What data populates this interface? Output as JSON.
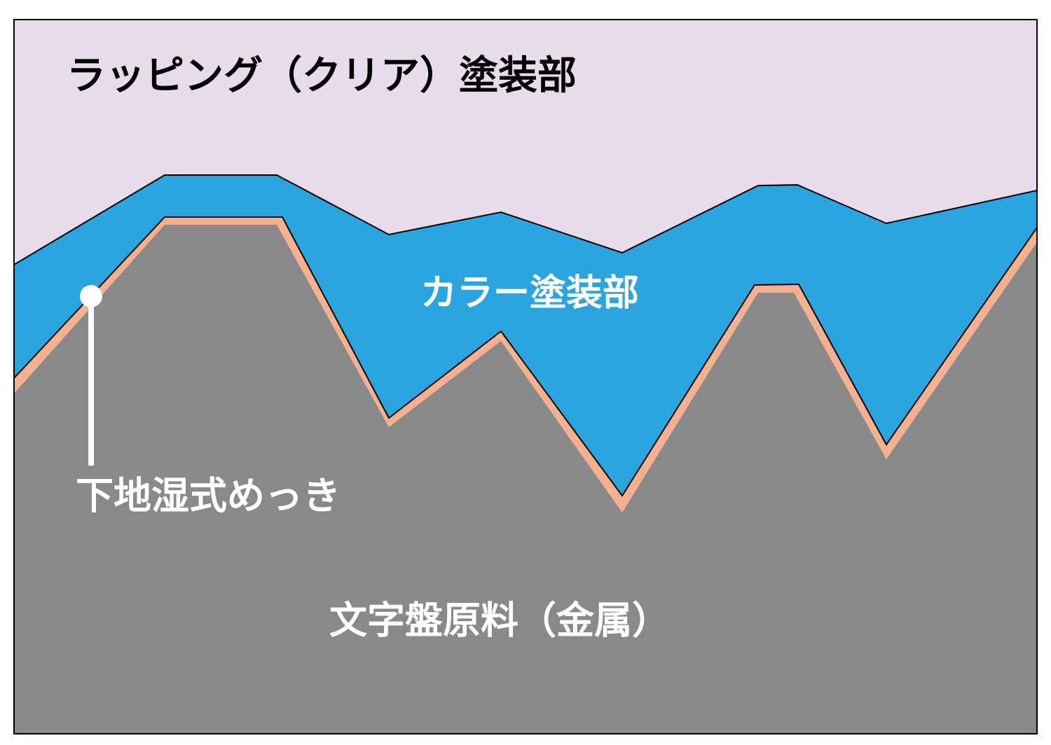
{
  "layers": {
    "clear_coat": "ラッピング（クリア）塗装部",
    "color_coat": "カラー塗装部",
    "plating": "下地湿式めっき",
    "base": "文字盤原料（金属）"
  }
}
